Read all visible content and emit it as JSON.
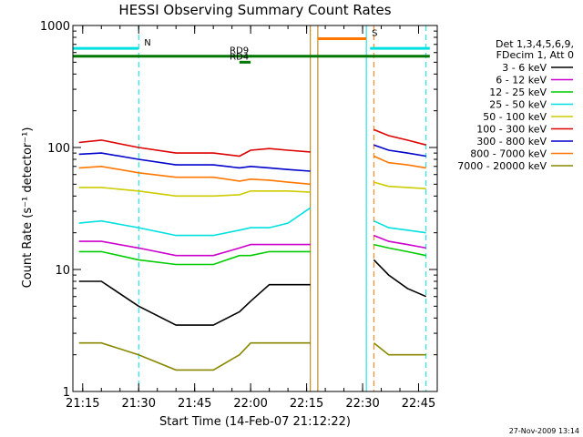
{
  "chart_data": {
    "type": "line",
    "title": "HESSI Observing Summary Count Rates",
    "xlabel": "Start Time (14-Feb-07 21:12:22)",
    "ylabel": "Count Rate (s⁻¹ detector⁻¹)",
    "yscale": "log",
    "xlim": [
      "21:12:22",
      "22:50:00"
    ],
    "ylim": [
      1,
      1000
    ],
    "x_ticks": [
      "21:15",
      "21:30",
      "21:45",
      "22:00",
      "22:15",
      "22:30",
      "22:45"
    ],
    "y_ticks": [
      1,
      10,
      100,
      1000
    ],
    "y_tick_labels": [
      "1",
      "10",
      "100",
      "1000"
    ],
    "grid": false,
    "legend_placement": "right",
    "legend_header": [
      "Det 1,3,4,5,6,9,",
      "FDecim 1, Att 0"
    ],
    "series": [
      {
        "name": "3 - 6 keV",
        "color": "#000000",
        "x": [
          "21:14",
          "21:20",
          "21:30",
          "21:40",
          "21:50",
          "21:57",
          "22:00",
          "22:05",
          "22:10",
          "22:16",
          "22:33",
          "22:37",
          "22:42",
          "22:47"
        ],
        "y": [
          8,
          8,
          5,
          3.5,
          3.5,
          4.5,
          5.5,
          7.5,
          7.5,
          7.5,
          12,
          9,
          7,
          6
        ]
      },
      {
        "name": "6 - 12 keV",
        "color": "#cc00cc",
        "x": [
          "21:14",
          "21:20",
          "21:30",
          "21:40",
          "21:50",
          "21:57",
          "22:00",
          "22:05",
          "22:10",
          "22:16",
          "22:33",
          "22:37",
          "22:42",
          "22:47"
        ],
        "y": [
          17,
          17,
          15,
          13,
          13,
          15,
          16,
          16,
          16,
          16,
          19,
          17,
          16,
          15
        ]
      },
      {
        "name": "12 - 25 keV",
        "color": "#00cc00",
        "x": [
          "21:14",
          "21:20",
          "21:30",
          "21:40",
          "21:50",
          "21:57",
          "22:00",
          "22:05",
          "22:10",
          "22:16",
          "22:33",
          "22:37",
          "22:42",
          "22:47"
        ],
        "y": [
          14,
          14,
          12,
          11,
          11,
          13,
          13,
          14,
          14,
          14,
          16,
          15,
          14,
          13
        ]
      },
      {
        "name": "25 - 50 keV",
        "color": "#00e0e0",
        "x": [
          "21:14",
          "21:20",
          "21:30",
          "21:40",
          "21:50",
          "21:57",
          "22:00",
          "22:05",
          "22:10",
          "22:16",
          "22:33",
          "22:37",
          "22:42",
          "22:47"
        ],
        "y": [
          24,
          25,
          22,
          19,
          19,
          21,
          22,
          22,
          24,
          32,
          25,
          22,
          21,
          20
        ]
      },
      {
        "name": "50 - 100 keV",
        "color": "#cccc00",
        "x": [
          "21:14",
          "21:20",
          "21:30",
          "21:40",
          "21:50",
          "21:57",
          "22:00",
          "22:05",
          "22:10",
          "22:16",
          "22:33",
          "22:37",
          "22:42",
          "22:47"
        ],
        "y": [
          47,
          47,
          44,
          40,
          40,
          41,
          44,
          44,
          44,
          43,
          52,
          48,
          47,
          46
        ]
      },
      {
        "name": "100 - 300 keV",
        "color": "#dd0000",
        "x": [
          "21:14",
          "21:20",
          "21:30",
          "21:40",
          "21:50",
          "21:57",
          "22:00",
          "22:05",
          "22:10",
          "22:16",
          "22:33",
          "22:37",
          "22:42",
          "22:47"
        ],
        "y": [
          110,
          115,
          100,
          90,
          90,
          85,
          95,
          98,
          95,
          92,
          140,
          125,
          115,
          105
        ]
      },
      {
        "name": "300 - 800 keV",
        "color": "#0000cc",
        "x": [
          "21:14",
          "21:20",
          "21:30",
          "21:40",
          "21:50",
          "21:57",
          "22:00",
          "22:05",
          "22:10",
          "22:16",
          "22:33",
          "22:37",
          "22:42",
          "22:47"
        ],
        "y": [
          88,
          90,
          80,
          72,
          72,
          68,
          70,
          68,
          66,
          64,
          105,
          95,
          90,
          85
        ]
      },
      {
        "name": "800 - 7000 keV",
        "color": "#ff7700",
        "x": [
          "21:14",
          "21:20",
          "21:30",
          "21:40",
          "21:50",
          "21:57",
          "22:00",
          "22:05",
          "22:10",
          "22:16",
          "22:33",
          "22:37",
          "22:42",
          "22:47"
        ],
        "y": [
          68,
          70,
          62,
          57,
          57,
          53,
          55,
          54,
          52,
          50,
          85,
          75,
          72,
          68
        ]
      },
      {
        "name": "7000 - 20000 keV",
        "color": "#888800",
        "x": [
          "21:14",
          "21:20",
          "21:30",
          "21:40",
          "21:50",
          "21:57",
          "22:00",
          "22:05",
          "22:10",
          "22:16",
          "22:33",
          "22:37",
          "22:42",
          "22:47"
        ],
        "y": [
          2.5,
          2.5,
          2,
          1.5,
          1.5,
          2,
          2.5,
          2.5,
          2.5,
          2.5,
          2.5,
          2,
          2,
          2
        ]
      }
    ],
    "annotations": [
      {
        "label": "N",
        "color": "#00e0e0",
        "x_start": "21:12:22",
        "x_end": "21:30",
        "y": 650
      },
      {
        "label": "",
        "color": "#00e0e0",
        "x_start": "22:32",
        "x_end": "22:48",
        "y": 650
      },
      {
        "label": "S",
        "color": "#ff7700",
        "x_start": "22:18",
        "x_end": "22:31",
        "y": 780
      },
      {
        "label": "",
        "color": "#007700",
        "x_start": "21:12:22",
        "x_end": "22:48",
        "y": 560
      },
      {
        "label": "RD4",
        "color": "#007700",
        "x_start": "21:57",
        "x_end": "22:00",
        "y": 500
      },
      {
        "label": "RD9",
        "color": "#007700",
        "x_start": "22:00",
        "x_end": "22:00",
        "y": 560
      }
    ],
    "vertical_markers": [
      {
        "x": "21:12:22",
        "color": "#00e0e0",
        "style": "solid"
      },
      {
        "x": "21:30",
        "color": "#00e0e0",
        "style": "dashed"
      },
      {
        "x": "22:16",
        "color": "#aa7700",
        "style": "solid"
      },
      {
        "x": "22:18",
        "color": "#aa7700",
        "style": "solid"
      },
      {
        "x": "22:31",
        "color": "#00e0e0",
        "style": "solid"
      },
      {
        "x": "22:33",
        "color": "#ff7700",
        "style": "dashed"
      },
      {
        "x": "22:47",
        "color": "#00e0e0",
        "style": "dashed"
      }
    ]
  },
  "footer": {
    "timestamp": "27-Nov-2009 13:14"
  }
}
